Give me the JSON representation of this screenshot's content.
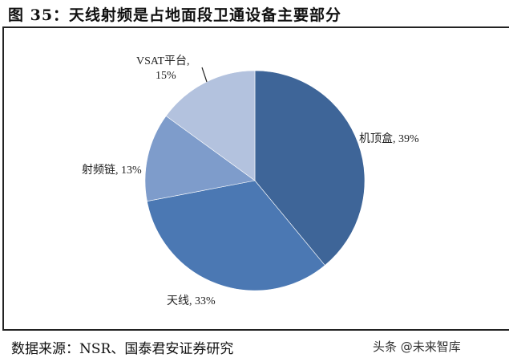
{
  "title": "图 35：天线射频是占地面段卫通设备主要部分",
  "source": "数据来源：NSR、国泰君安证券研究",
  "watermark": "头条 @未来智库",
  "chart_data": {
    "type": "pie",
    "title": "图 35：天线射频是占地面段卫通设备主要部分",
    "start_angle": "12 o'clock",
    "direction": "clockwise",
    "slices": [
      {
        "label": "机顶盒",
        "value": 39,
        "color": "#3e6598",
        "text": "机顶盒, 39%"
      },
      {
        "label": "天线",
        "value": 33,
        "color": "#4b78b3",
        "text": "天线, 33%"
      },
      {
        "label": "射频链",
        "value": 13,
        "color": "#7e9ccb",
        "text": "射频链, 13%"
      },
      {
        "label": "VSAT平台",
        "value": 15,
        "color": "#b3c2de",
        "text_line1": "VSAT平台,",
        "text_line2": "15%"
      }
    ],
    "legend": "none (data labels)"
  }
}
